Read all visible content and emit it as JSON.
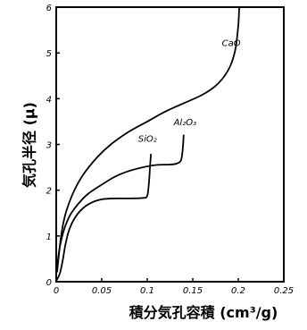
{
  "chart_data": {
    "type": "line",
    "xlabel": "積分気孔容積 (cm³/g)",
    "ylabel": "気孔半径 (μ)",
    "xlim": [
      0,
      0.25
    ],
    "ylim": [
      0,
      6
    ],
    "xticks": [
      {
        "value": 0,
        "label": "0"
      },
      {
        "value": 0.05,
        "label": "0.05"
      },
      {
        "value": 0.1,
        "label": "0.1"
      },
      {
        "value": 0.15,
        "label": "0.15"
      },
      {
        "value": 0.2,
        "label": "0.2"
      },
      {
        "value": 0.25,
        "label": "0.25"
      }
    ],
    "yticks": [
      {
        "value": 0,
        "label": "0"
      },
      {
        "value": 1,
        "label": "1"
      },
      {
        "value": 2,
        "label": "2"
      },
      {
        "value": 3,
        "label": "3"
      },
      {
        "value": 4,
        "label": "4"
      },
      {
        "value": 5,
        "label": "5"
      },
      {
        "value": 6,
        "label": "6"
      }
    ],
    "grid": false,
    "series": [
      {
        "name": "CaO",
        "label_anchor": [
          0.182,
          5.15
        ],
        "points": [
          [
            0.001,
            0.22
          ],
          [
            0.003,
            0.6
          ],
          [
            0.005,
            0.95
          ],
          [
            0.008,
            1.3
          ],
          [
            0.012,
            1.6
          ],
          [
            0.02,
            2.0
          ],
          [
            0.03,
            2.35
          ],
          [
            0.045,
            2.72
          ],
          [
            0.06,
            3.0
          ],
          [
            0.08,
            3.28
          ],
          [
            0.1,
            3.5
          ],
          [
            0.12,
            3.72
          ],
          [
            0.14,
            3.9
          ],
          [
            0.16,
            4.08
          ],
          [
            0.175,
            4.28
          ],
          [
            0.185,
            4.5
          ],
          [
            0.192,
            4.75
          ],
          [
            0.197,
            5.1
          ],
          [
            0.2,
            5.6
          ],
          [
            0.201,
            5.98
          ]
        ]
      },
      {
        "name": "Al₂O₃",
        "label_anchor": [
          0.129,
          3.42
        ],
        "points": [
          [
            0.001,
            0.3
          ],
          [
            0.003,
            0.65
          ],
          [
            0.006,
            0.95
          ],
          [
            0.01,
            1.22
          ],
          [
            0.016,
            1.48
          ],
          [
            0.025,
            1.72
          ],
          [
            0.035,
            1.92
          ],
          [
            0.05,
            2.12
          ],
          [
            0.065,
            2.3
          ],
          [
            0.08,
            2.42
          ],
          [
            0.095,
            2.5
          ],
          [
            0.11,
            2.55
          ],
          [
            0.125,
            2.56
          ],
          [
            0.132,
            2.58
          ],
          [
            0.137,
            2.65
          ],
          [
            0.139,
            2.9
          ],
          [
            0.14,
            3.2
          ]
        ]
      },
      {
        "name": "SiO₂",
        "label_anchor": [
          0.09,
          3.06
        ],
        "points": [
          [
            0.001,
            0.05
          ],
          [
            0.004,
            0.18
          ],
          [
            0.007,
            0.45
          ],
          [
            0.01,
            0.8
          ],
          [
            0.014,
            1.12
          ],
          [
            0.02,
            1.38
          ],
          [
            0.028,
            1.58
          ],
          [
            0.038,
            1.72
          ],
          [
            0.05,
            1.8
          ],
          [
            0.065,
            1.82
          ],
          [
            0.08,
            1.82
          ],
          [
            0.095,
            1.83
          ],
          [
            0.1,
            1.88
          ],
          [
            0.102,
            2.2
          ],
          [
            0.103,
            2.5
          ],
          [
            0.104,
            2.78
          ]
        ]
      }
    ]
  }
}
